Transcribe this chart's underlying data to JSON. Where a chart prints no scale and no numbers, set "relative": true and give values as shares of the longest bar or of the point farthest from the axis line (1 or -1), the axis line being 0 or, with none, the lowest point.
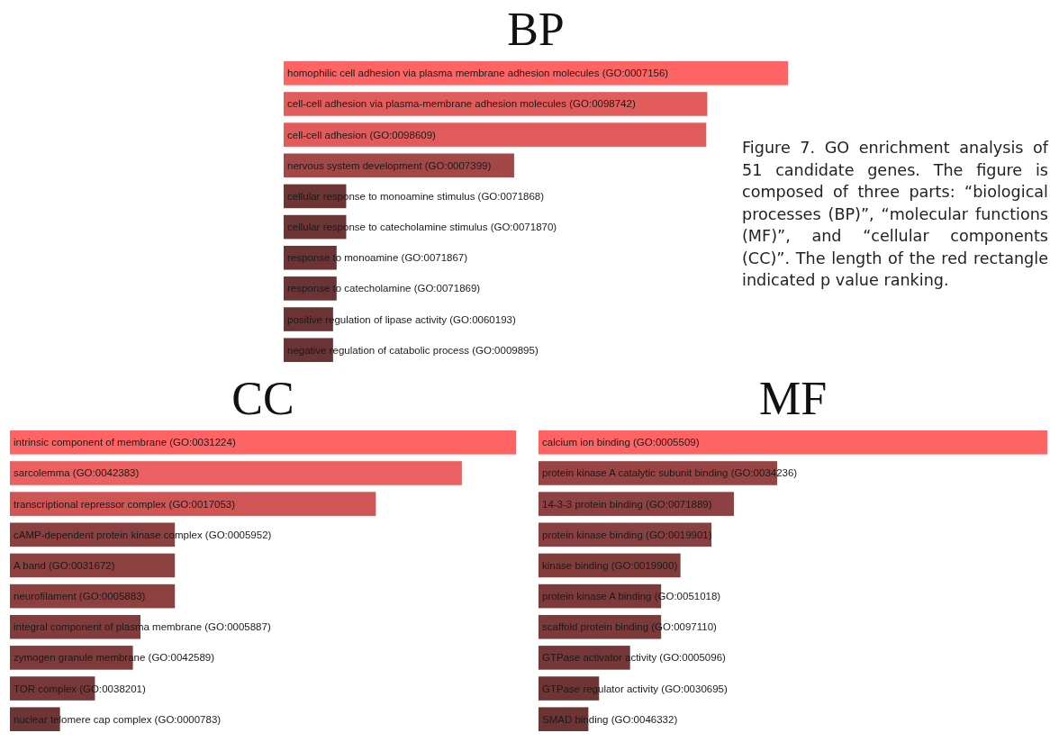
{
  "chart_data": [
    {
      "type": "bar",
      "orientation": "horizontal",
      "relative": true,
      "title": "BP",
      "categories": [
        "homophilic cell adhesion via plasma membrane adhesion molecules (GO:0007156)",
        "cell-cell adhesion via plasma-membrane adhesion molecules (GO:0098742)",
        "cell-cell adhesion (GO:0098609)",
        "nervous system development (GO:0007399)",
        "cellular response to monoamine stimulus (GO:0071868)",
        "cellular response to catecholamine stimulus (GO:0071870)",
        "response to monoamine (GO:0071867)",
        "response to catecholamine (GO:0071869)",
        "positive regulation of lipase activity (GO:0060193)",
        "negative regulation of catabolic process (GO:0009895)"
      ],
      "values": [
        1,
        0.84,
        0.838,
        0.457,
        0.124,
        0.124,
        0.105,
        0.105,
        0.098,
        0.098
      ],
      "colors": [
        "#ff6464",
        "#e35c5c",
        "#e25b5b",
        "#a24848",
        "#6e3535",
        "#6e3535",
        "#6c3434",
        "#6c3434",
        "#6b3434",
        "#6b3434"
      ],
      "annotations": [
        "Figure 7. GO enrichment analysis of 51 candidate genes. The figure is composed of three parts: “biological processes (BP)”, “molecular functions (MF)”, and “cellular components (CC)”. The length of the red rectangle indicated p value ranking."
      ]
    },
    {
      "type": "bar",
      "orientation": "horizontal",
      "relative": true,
      "title": "CC",
      "categories": [
        "intrinsic component of membrane (GO:0031224)",
        "sarcolemma (GO:0042383)",
        "transcriptional repressor complex (GO:0017053)",
        "cAMP-dependent protein kinase complex (GO:0005952)",
        "A band (GO:0031672)",
        "neurofilament (GO:0005883)",
        "integral component of plasma membrane (GO:0005887)",
        "zymogen granule membrane (GO:0042589)",
        "TOR complex (GO:0038201)",
        "nuclear telomere cap complex (GO:0000783)"
      ],
      "values": [
        1,
        0.893,
        0.723,
        0.326,
        0.326,
        0.326,
        0.258,
        0.243,
        0.168,
        0.099
      ],
      "colors": [
        "#ff6464",
        "#eb6060",
        "#d05555",
        "#8c4040",
        "#8c4040",
        "#8c4040",
        "#833c3c",
        "#803b3b",
        "#773838",
        "#6e3535"
      ]
    },
    {
      "type": "bar",
      "orientation": "horizontal",
      "relative": true,
      "title": "MF",
      "categories": [
        "calcium ion binding (GO:0005509)",
        "protein kinase A catalytic subunit binding (GO:0034236)",
        "14-3-3 protein binding (GO:0071889)",
        "protein kinase binding (GO:0019901)",
        "kinase binding (GO:0019900)",
        "protein kinase A binding (GO:0051018)",
        "scaffold protein binding (GO:0097110)",
        "GTPase activator activity (GO:0005096)",
        "GTPase regulator activity (GO:0030695)",
        "SMAD binding (GO:0046332)"
      ],
      "values": [
        1,
        0.469,
        0.384,
        0.34,
        0.279,
        0.241,
        0.241,
        0.18,
        0.119,
        0.098
      ],
      "colors": [
        "#ff6464",
        "#994444",
        "#8d4141",
        "#884040",
        "#823c3c",
        "#7d3a3a",
        "#7d3a3a",
        "#753737",
        "#6f3535",
        "#6d3434"
      ]
    }
  ]
}
